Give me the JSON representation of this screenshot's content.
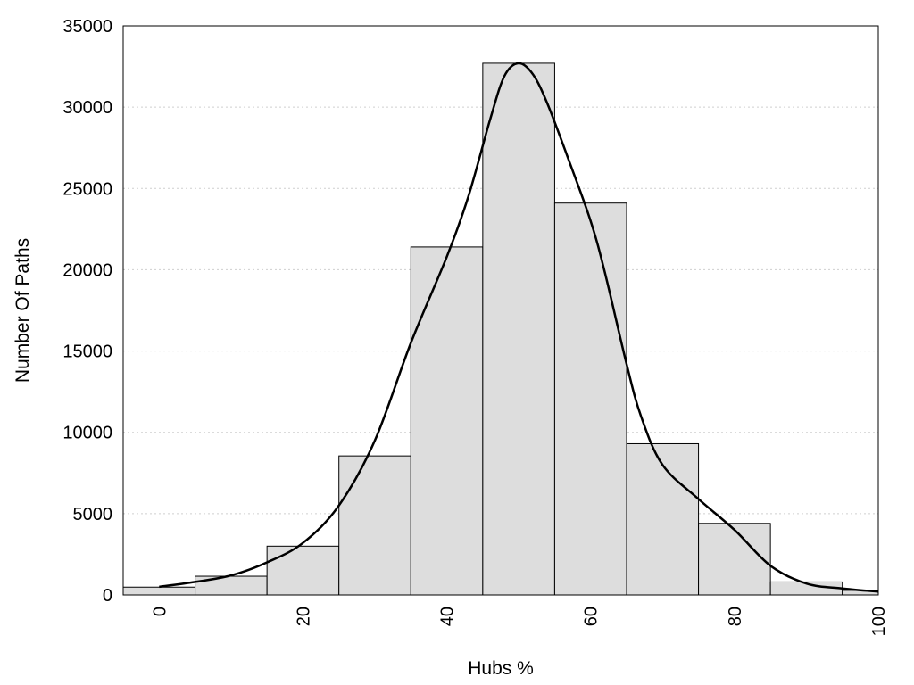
{
  "chart_data": {
    "type": "bar",
    "xlabel": "Hubs %",
    "ylabel": "Number Of Paths",
    "xlim": [
      -5,
      100
    ],
    "ylim": [
      0,
      35000
    ],
    "xticks": [
      0,
      20,
      40,
      60,
      80,
      100
    ],
    "yticks": [
      0,
      5000,
      10000,
      15000,
      20000,
      25000,
      30000,
      35000
    ],
    "grid": "horizontal dotted",
    "bar_color": "#dddddd",
    "bins": [
      {
        "start": -5,
        "end": 5,
        "value": 480
      },
      {
        "start": 5,
        "end": 15,
        "value": 1150
      },
      {
        "start": 15,
        "end": 25,
        "value": 3000
      },
      {
        "start": 25,
        "end": 35,
        "value": 8550
      },
      {
        "start": 35,
        "end": 45,
        "value": 21400
      },
      {
        "start": 45,
        "end": 55,
        "value": 32700
      },
      {
        "start": 55,
        "end": 65,
        "value": 24100
      },
      {
        "start": 65,
        "end": 75,
        "value": 9300
      },
      {
        "start": 75,
        "end": 85,
        "value": 4400
      },
      {
        "start": 85,
        "end": 95,
        "value": 800
      },
      {
        "start": 95,
        "end": 105,
        "value": 280
      }
    ],
    "curve": {
      "x": [
        0,
        5,
        10,
        15,
        20,
        25,
        30,
        35,
        40,
        43,
        46,
        48,
        50,
        52,
        54,
        57,
        60,
        62,
        65,
        67,
        70,
        75,
        80,
        85,
        90,
        95,
        100
      ],
      "y": [
        500,
        800,
        1200,
        2000,
        3200,
        5500,
        9500,
        15500,
        20800,
        24500,
        29200,
        31900,
        32700,
        32000,
        30200,
        26700,
        23000,
        19800,
        14200,
        11000,
        8000,
        5900,
        4000,
        1800,
        700,
        400,
        200
      ]
    }
  }
}
